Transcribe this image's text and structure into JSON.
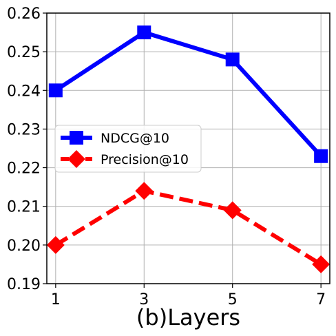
{
  "chart_data": {
    "type": "line",
    "title": "",
    "xlabel": "(b)Layers",
    "ylabel": "",
    "x": [
      1,
      3,
      5,
      7
    ],
    "x_ticks": [
      "1",
      "3",
      "5",
      "7"
    ],
    "xlim": [
      0.8,
      7.2
    ],
    "ylim": [
      0.19,
      0.26
    ],
    "y_ticks": [
      "0.19",
      "0.20",
      "0.21",
      "0.22",
      "0.23",
      "0.24",
      "0.25",
      "0.26"
    ],
    "grid": true,
    "legend": "center-left",
    "series": [
      {
        "name": "NDCG@10",
        "values": [
          0.24,
          0.255,
          0.248,
          0.223
        ],
        "color": "#0000ff",
        "marker": "square",
        "linestyle": "solid"
      },
      {
        "name": "Precision@10",
        "values": [
          0.2,
          0.214,
          0.209,
          0.195
        ],
        "color": "#ff0000",
        "marker": "diamond",
        "linestyle": "dashed"
      }
    ]
  }
}
